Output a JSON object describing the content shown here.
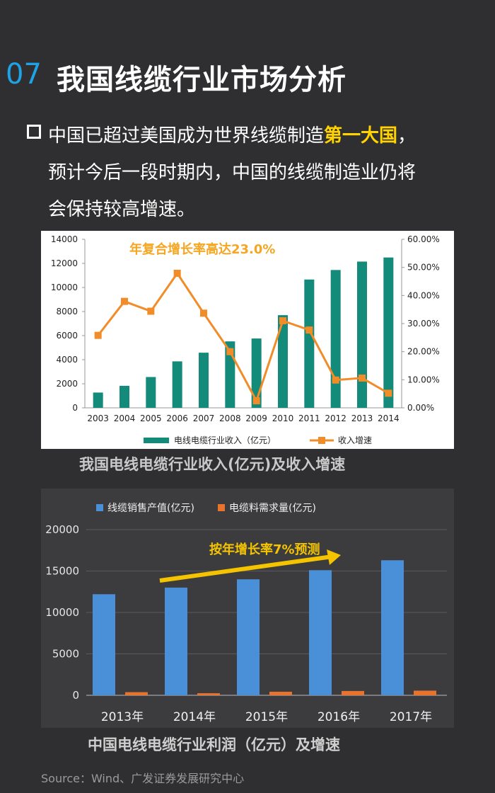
{
  "header": {
    "number": "07",
    "title": "我国线缆行业市场分析"
  },
  "intro": {
    "line1_a": "中国已超过美国成为世界线缆制造",
    "line1_hl": "第一大国",
    "line1_b": "，",
    "line2": "预计今后一段时期内，中国的线缆制造业仍将",
    "line3": "会保持较高增速。"
  },
  "chart_data": [
    {
      "type": "bar",
      "categories": [
        "2003",
        "2004",
        "2005",
        "2006",
        "2007",
        "2008",
        "2009",
        "2010",
        "2011",
        "2012",
        "2013",
        "2014"
      ],
      "series": [
        {
          "name": "电线电缆行业收入（亿元）",
          "type": "bar",
          "axis": "left",
          "values": [
            1270,
            1830,
            2560,
            3860,
            4580,
            5520,
            5760,
            7700,
            10660,
            11450,
            12150,
            12490
          ]
        },
        {
          "name": "收入增速",
          "type": "line",
          "axis": "right",
          "values": [
            25.8,
            37.9,
            34.4,
            47.9,
            33.7,
            20.0,
            2.5,
            31.0,
            27.7,
            9.9,
            10.6,
            5.2
          ]
        }
      ],
      "yticks_left": [
        "0",
        "2000",
        "4000",
        "6000",
        "8000",
        "10000",
        "12000",
        "14000"
      ],
      "yticks_right": [
        "0.00%",
        "10.00%",
        "20.00%",
        "30.00%",
        "40.00%",
        "50.00%",
        "60.00%"
      ],
      "ylim_left": [
        0,
        14000
      ],
      "ylim_right": [
        0,
        60
      ],
      "annotation": "年复合增长率高达23.0%",
      "legend_position": "bottom",
      "colors": {
        "bar": "#138a7a",
        "line": "#f28c28",
        "annotation": "#f5a623"
      },
      "caption": "我国电线电缆行业收入(亿元)及收入增速"
    },
    {
      "type": "bar",
      "categories": [
        "2013年",
        "2014年",
        "2015年",
        "2016年",
        "2017年"
      ],
      "series": [
        {
          "name": "线缆销售产值(亿元)",
          "values": [
            12200,
            13000,
            14000,
            15100,
            16300
          ]
        },
        {
          "name": "电缆料需求量(亿元)",
          "values": [
            380,
            250,
            430,
            520,
            560
          ]
        }
      ],
      "yticks": [
        "0",
        "5000",
        "10000",
        "15000",
        "20000"
      ],
      "ylim": [
        0,
        20000
      ],
      "annotation": "按年增长率7%预测",
      "legend_position": "top-left",
      "colors": {
        "series1": "#4a90d9",
        "series2": "#e8732c",
        "arrow": "#f5c400"
      },
      "caption": "中国电线电缆行业利润（亿元）及增速"
    }
  ],
  "source": "Source：Wind、广发证券发展研究中心"
}
